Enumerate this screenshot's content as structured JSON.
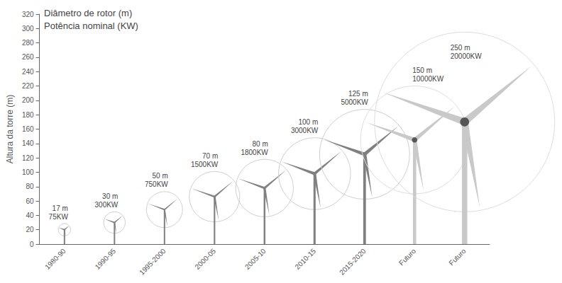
{
  "chart_data": {
    "type": "turbine",
    "y_label": "Altura da torre (m)",
    "categories": [
      "1980-90",
      "1990-95",
      "1995-2000",
      "2000-05",
      "2005-10",
      "2010-15",
      "2015-2020",
      "Futuro",
      "Futuro"
    ],
    "values": [
      20,
      30,
      48,
      66,
      78,
      98,
      125,
      145,
      170
    ],
    "rotor_diameter": {
      "name": "Diâmetro de rotor (m)",
      "values": [
        17,
        30,
        50,
        70,
        80,
        100,
        125,
        150,
        250
      ],
      "value_labels": [
        "17 m",
        "30 m",
        "50 m",
        "70 m",
        "80 m",
        "100 m",
        "125 m",
        "150 m",
        "250 m"
      ]
    },
    "power": {
      "name": "Potência nominal (KW)",
      "values": [
        75,
        300,
        750,
        1500,
        1800,
        3000,
        5000,
        10000,
        20000
      ],
      "value_labels": [
        "75KW",
        "300KW",
        "750KW",
        "1500KW",
        "1800KW",
        "3000KW",
        "5000KW",
        "10000KW",
        "20000KW"
      ]
    },
    "ylim": [
      0,
      320
    ],
    "yticks": [
      0,
      20,
      40,
      60,
      80,
      100,
      120,
      140,
      160,
      180,
      200,
      220,
      240,
      260,
      280,
      300,
      320
    ],
    "grid": false,
    "data_labels": true,
    "colors": [
      "#808080",
      "#808080",
      "#808080",
      "#808080",
      "#808080",
      "#808080",
      "#808080",
      "#c9c9c9",
      "#c9c9c9"
    ]
  }
}
